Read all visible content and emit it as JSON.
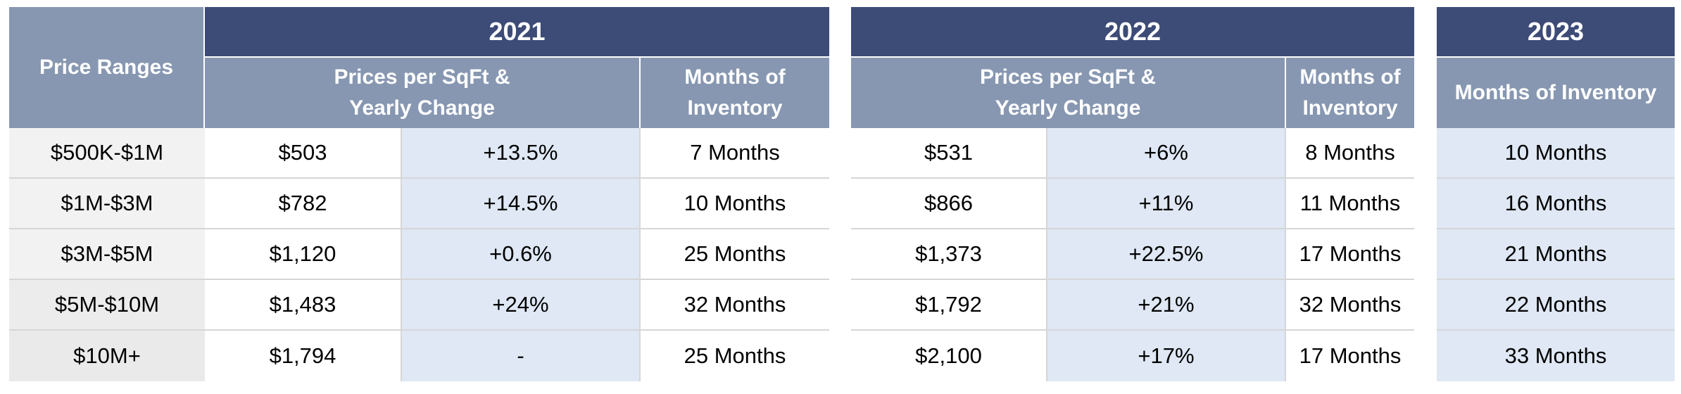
{
  "ranges_header": "Price Ranges",
  "price_ranges": [
    "$500K-$1M",
    "$1M-$3M",
    "$3M-$5M",
    "$5M-$10M",
    "$10M+"
  ],
  "y2021": {
    "year": "2021",
    "prices_header_line1": "Prices per SqFt &",
    "prices_header_line2": "Yearly Change",
    "inventory_header_line1": "Months of",
    "inventory_header_line2": "Inventory",
    "rows": [
      {
        "price": "$503",
        "change": "+13.5%",
        "inventory": "7 Months"
      },
      {
        "price": "$782",
        "change": "+14.5%",
        "inventory": "10 Months"
      },
      {
        "price": "$1,120",
        "change": "+0.6%",
        "inventory": "25 Months"
      },
      {
        "price": "$1,483",
        "change": "+24%",
        "inventory": "32 Months"
      },
      {
        "price": "$1,794",
        "change": "-",
        "inventory": "25 Months"
      }
    ]
  },
  "y2022": {
    "year": "2022",
    "prices_header_line1": "Prices per SqFt &",
    "prices_header_line2": "Yearly Change",
    "inventory_header_line1": "Months of",
    "inventory_header_line2": "Inventory",
    "rows": [
      {
        "price": "$531",
        "change": "+6%",
        "inventory": "8 Months"
      },
      {
        "price": "$866",
        "change": "+11%",
        "inventory": "11 Months"
      },
      {
        "price": "$1,373",
        "change": "+22.5%",
        "inventory": "17 Months"
      },
      {
        "price": "$1,792",
        "change": "+21%",
        "inventory": "32 Months"
      },
      {
        "price": "$2,100",
        "change": "+17%",
        "inventory": "17 Months"
      }
    ]
  },
  "y2023": {
    "year": "2023",
    "inventory_header": "Months of Inventory",
    "rows": [
      "10 Months",
      "16 Months",
      "21 Months",
      "22 Months",
      "33 Months"
    ]
  },
  "colors": {
    "year_header": "#3d4b77",
    "sub_header": "#8797b1",
    "highlight_column": "#dfe8f4",
    "range_column": "#f2f2f2"
  }
}
